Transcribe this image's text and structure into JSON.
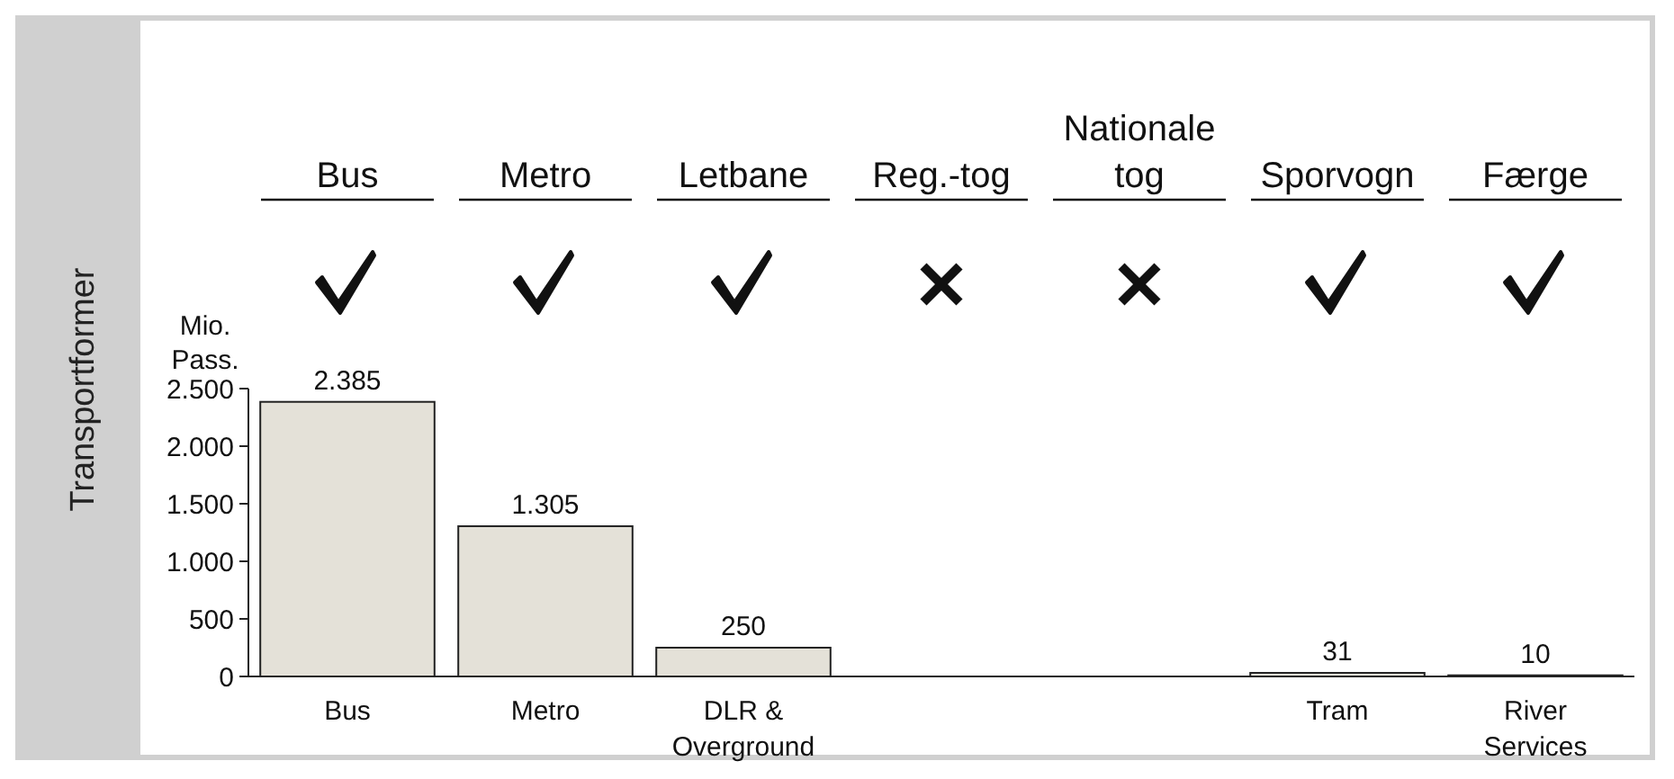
{
  "chart_data": {
    "type": "bar",
    "ylabel": "Mio. Pass.",
    "annotations": [
      "Transportformer",
      "Bus",
      "Metro",
      "Letbane",
      "Reg.-tog",
      "Nationale tog",
      "Sporvogn",
      "Færge"
    ],
    "categories": [
      "Bus",
      "Metro",
      "DLR & Overground",
      null,
      null,
      "Tram",
      "River Services"
    ],
    "values": [
      2385,
      1305,
      250,
      null,
      null,
      31,
      10
    ],
    "value_labels": [
      "2.385",
      "1.305",
      "250",
      null,
      null,
      "31",
      "10"
    ],
    "color": "#e4e1d8",
    "ylim": [
      0,
      2500
    ],
    "yticks": [
      0,
      500,
      {
        "value": 1000,
        "label": "1.000"
      },
      {
        "value": 1500,
        "label": "1.500"
      },
      {
        "value": 2000,
        "label": "2.000"
      },
      {
        "value": 2500,
        "label": "2.500"
      }
    ],
    "grid": false
  }
}
